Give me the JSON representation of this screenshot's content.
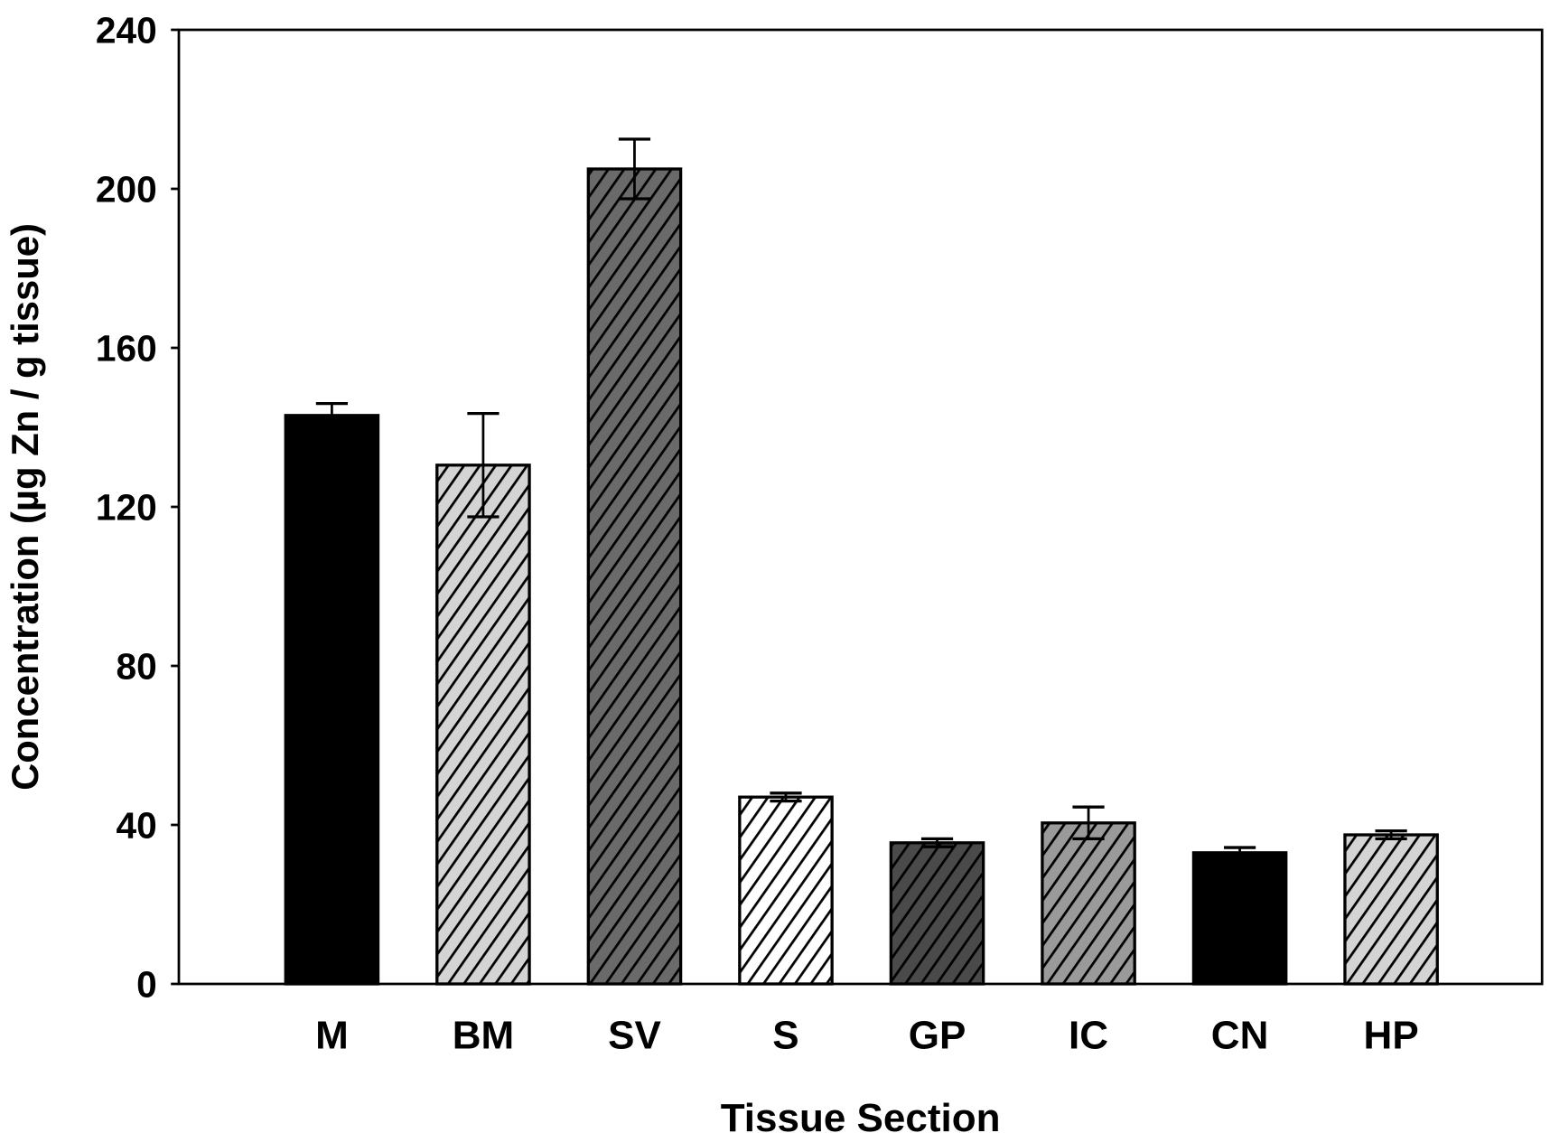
{
  "chart_data": {
    "type": "bar",
    "title": "",
    "xlabel": "Tissue Section",
    "ylabel": "Concentration (µg Zn / g tissue)",
    "ylim": [
      0,
      240
    ],
    "yticks": [
      "0",
      "40",
      "80",
      "120",
      "160",
      "200",
      "240"
    ],
    "ytick_values": [
      0,
      40,
      80,
      120,
      160,
      200,
      240
    ],
    "grid": false,
    "categories": [
      "M",
      "BM",
      "SV",
      "S",
      "GP",
      "IC",
      "CN",
      "HP"
    ],
    "values": [
      143,
      130.5,
      205,
      47,
      35.5,
      40.5,
      33,
      37.5
    ],
    "errors": [
      3,
      13,
      7.5,
      1,
      1,
      4,
      1.3,
      1
    ],
    "fills": [
      "#000000",
      "#d4d4d4",
      "#6a6a6a",
      "#ffffff",
      "#4a4a4a",
      "#9a9a9a",
      "#000000",
      "#d4d4d4"
    ],
    "hatched": [
      false,
      true,
      true,
      true,
      true,
      true,
      false,
      true
    ]
  }
}
